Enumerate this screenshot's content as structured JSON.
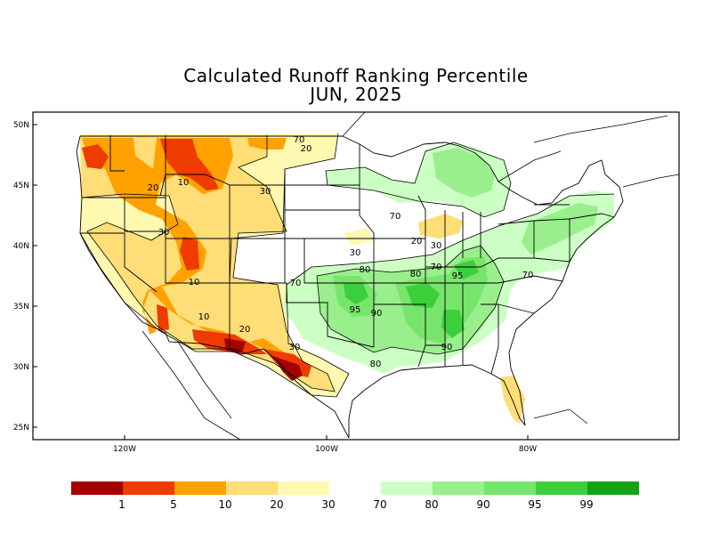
{
  "title": "Calculated Runoff Ranking Percentile",
  "subtitle": "JUN, 2025",
  "axes": {
    "lat_ticks": [
      "50N",
      "45N",
      "40N",
      "35N",
      "30N",
      "25N"
    ],
    "lon_ticks": [
      "120W",
      "100W",
      "80W"
    ]
  },
  "contour_labels": [
    "70",
    "20",
    "30",
    "10",
    "20",
    "30",
    "30",
    "10",
    "70",
    "20",
    "30",
    "30",
    "80",
    "70",
    "80",
    "70",
    "95",
    "95",
    "90",
    "10",
    "20",
    "30",
    "90",
    "80",
    "70"
  ],
  "legend": {
    "dry_colors": [
      "#a50000",
      "#ee3b00",
      "#ffa200",
      "#ffdd77",
      "#fff8b0"
    ],
    "wet_colors": [
      "#ccffc4",
      "#99ef8c",
      "#77e56b",
      "#3ccf3c",
      "#14a314"
    ],
    "tick_labels": [
      "1",
      "5",
      "10",
      "20",
      "30",
      "70",
      "80",
      "90",
      "95",
      "99"
    ]
  }
}
